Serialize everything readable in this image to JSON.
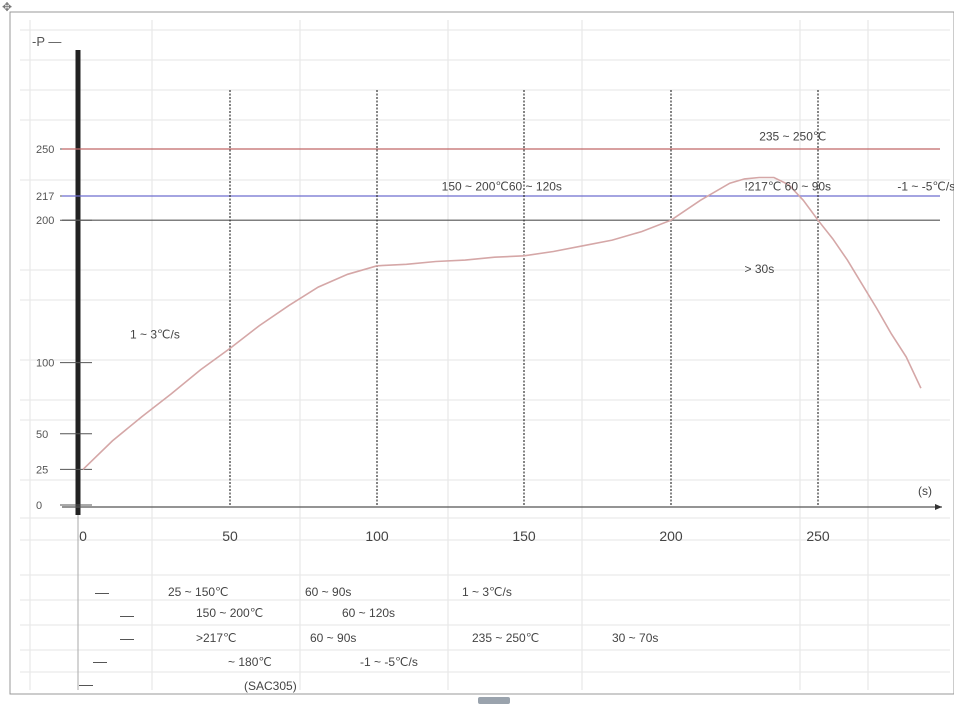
{
  "chart_data": {
    "type": "line",
    "title": "",
    "xlabel": "(s)",
    "ylabel": "P",
    "xlim": [
      0,
      290
    ],
    "ylim": [
      0,
      270
    ],
    "x_ticks": [
      0,
      50,
      100,
      150,
      200,
      250
    ],
    "x_tick_labels": [
      "0",
      "50",
      "100",
      "150",
      "200",
      "250"
    ],
    "y_ticks": [
      0,
      25,
      50,
      100,
      200,
      217,
      250
    ],
    "y_tick_labels": [
      "0",
      "25",
      "50",
      "100",
      "200",
      "217",
      "250"
    ],
    "grid": true,
    "series": [
      {
        "name": "",
        "color": "#d5a7a7",
        "x": [
          0,
          10,
          20,
          30,
          40,
          50,
          60,
          70,
          80,
          90,
          100,
          110,
          120,
          130,
          140,
          150,
          160,
          170,
          180,
          190,
          200,
          210,
          220,
          225,
          230,
          235,
          240,
          245,
          250,
          255,
          260,
          265,
          270,
          275,
          280,
          285
        ],
        "y": [
          25,
          45,
          62,
          78,
          95,
          110,
          126,
          140,
          153,
          162,
          168,
          169,
          171,
          172,
          174,
          175,
          178,
          182,
          186,
          192,
          200,
          214,
          226,
          229,
          230,
          230,
          225,
          214,
          200,
          187,
          172,
          155,
          138,
          120,
          104,
          82
        ]
      }
    ],
    "reference_lines": [
      {
        "orientation": "horizontal",
        "y": 250,
        "color": "#c06868"
      },
      {
        "orientation": "horizontal",
        "y": 217,
        "color": "#6d6dcf"
      },
      {
        "orientation": "horizontal",
        "y": 200,
        "color": "#555555"
      },
      {
        "orientation": "vertical",
        "x": 50,
        "color": "#333333"
      },
      {
        "orientation": "vertical",
        "x": 100,
        "color": "#333333"
      },
      {
        "orientation": "vertical",
        "x": 150,
        "color": "#333333"
      },
      {
        "orientation": "vertical",
        "x": 200,
        "color": "#333333"
      },
      {
        "orientation": "vertical",
        "x": 250,
        "color": "#333333"
      }
    ],
    "annotations": [
      {
        "text": "235 ~ 250℃",
        "x": 230,
        "y": 256
      },
      {
        "text": "150 ~ 200℃60 ~ 120s",
        "x": 122,
        "y": 221
      },
      {
        "text": "!217℃ 60 ~ 90s",
        "x": 225,
        "y": 221
      },
      {
        "text": "-1 ~ -5℃/s",
        "x": 277,
        "y": 221
      },
      {
        "text": "> 30s",
        "x": 225,
        "y": 163
      },
      {
        "text": "1 ~ 3℃/s",
        "x": 16,
        "y": 117
      }
    ]
  },
  "notes": [
    [
      "25 ~ 150℃",
      "60 ~ 90s",
      "1 ~ 3℃/s"
    ],
    [
      "150 ~ 200℃",
      "60 ~ 120s"
    ],
    [
      ">217℃",
      "60 ~ 90s",
      "235 ~ 250℃",
      "30 ~ 70s"
    ],
    [
      "~ 180℃",
      "-1 ~ -5℃/s"
    ],
    [
      "(SAC305)"
    ]
  ],
  "icons": {
    "move_handle": "move-icon",
    "scroll_thumb": "scrollbar-thumb"
  }
}
